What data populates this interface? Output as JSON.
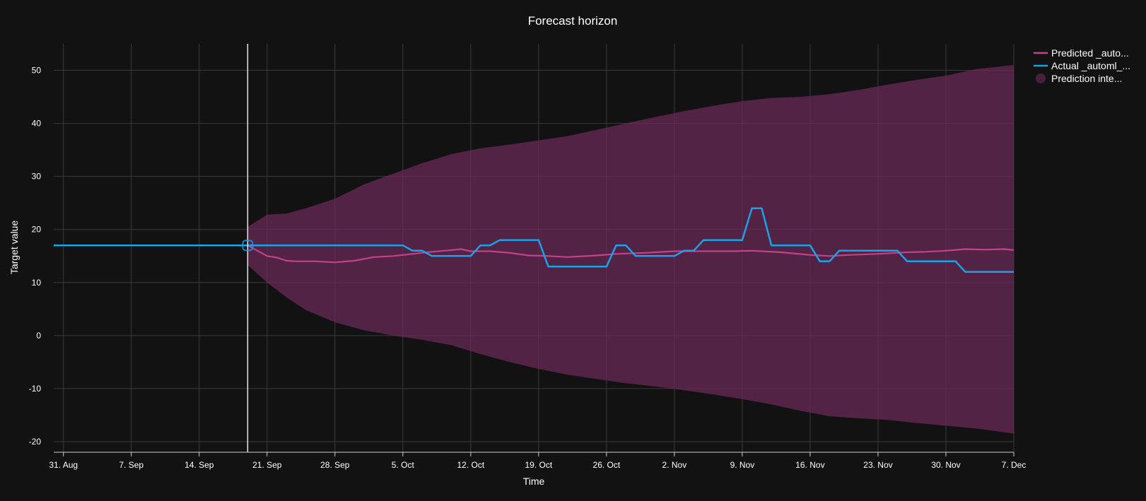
{
  "chart_data": {
    "type": "line",
    "title": "Forecast horizon",
    "xlabel": "Time",
    "ylabel": "Target value",
    "ylim": [
      -22,
      55
    ],
    "xlim": [
      "2020-08-30",
      "2020-12-07"
    ],
    "y_ticks": [
      -20,
      -10,
      0,
      10,
      20,
      30,
      40,
      50
    ],
    "x_ticks": [
      {
        "date": "2020-08-31",
        "label": "31. Aug"
      },
      {
        "date": "2020-09-07",
        "label": "7. Sep"
      },
      {
        "date": "2020-09-14",
        "label": "14. Sep"
      },
      {
        "date": "2020-09-21",
        "label": "21. Sep"
      },
      {
        "date": "2020-09-28",
        "label": "28. Sep"
      },
      {
        "date": "2020-10-05",
        "label": "5. Oct"
      },
      {
        "date": "2020-10-12",
        "label": "12. Oct"
      },
      {
        "date": "2020-10-19",
        "label": "19. Oct"
      },
      {
        "date": "2020-10-26",
        "label": "26. Oct"
      },
      {
        "date": "2020-11-02",
        "label": "2. Nov"
      },
      {
        "date": "2020-11-09",
        "label": "9. Nov"
      },
      {
        "date": "2020-11-16",
        "label": "16. Nov"
      },
      {
        "date": "2020-11-23",
        "label": "23. Nov"
      },
      {
        "date": "2020-11-30",
        "label": "30. Nov"
      },
      {
        "date": "2020-12-07",
        "label": "7. Dec"
      }
    ],
    "grid": true,
    "legend_position": "top-right",
    "forecast_origin": "2020-09-19",
    "series": [
      {
        "name": "Predicted _auto...",
        "kind": "line",
        "color": "#c2428b",
        "points": [
          [
            "2020-09-19",
            17.0
          ],
          [
            "2020-09-20",
            16.0
          ],
          [
            "2020-09-21",
            15.0
          ],
          [
            "2020-09-22",
            14.7
          ],
          [
            "2020-09-23",
            14.1
          ],
          [
            "2020-09-24",
            14.0
          ],
          [
            "2020-09-26",
            14.0
          ],
          [
            "2020-09-28",
            13.8
          ],
          [
            "2020-09-30",
            14.1
          ],
          [
            "2020-10-02",
            14.8
          ],
          [
            "2020-10-04",
            15.0
          ],
          [
            "2020-10-06",
            15.4
          ],
          [
            "2020-10-08",
            15.8
          ],
          [
            "2020-10-10",
            16.1
          ],
          [
            "2020-10-11",
            16.3
          ],
          [
            "2020-10-12",
            15.9
          ],
          [
            "2020-10-14",
            15.9
          ],
          [
            "2020-10-16",
            15.6
          ],
          [
            "2020-10-18",
            15.1
          ],
          [
            "2020-10-20",
            15.0
          ],
          [
            "2020-10-22",
            14.8
          ],
          [
            "2020-10-25",
            15.1
          ],
          [
            "2020-10-27",
            15.4
          ],
          [
            "2020-10-30",
            15.6
          ],
          [
            "2020-11-02",
            15.9
          ],
          [
            "2020-11-05",
            15.9
          ],
          [
            "2020-11-08",
            15.9
          ],
          [
            "2020-11-10",
            16.0
          ],
          [
            "2020-11-13",
            15.7
          ],
          [
            "2020-11-16",
            15.2
          ],
          [
            "2020-11-18",
            15.0
          ],
          [
            "2020-11-20",
            15.2
          ],
          [
            "2020-11-23",
            15.4
          ],
          [
            "2020-11-26",
            15.7
          ],
          [
            "2020-11-28",
            15.8
          ],
          [
            "2020-11-30",
            16.0
          ],
          [
            "2020-12-02",
            16.3
          ],
          [
            "2020-12-04",
            16.2
          ],
          [
            "2020-12-06",
            16.3
          ],
          [
            "2020-12-07",
            16.1
          ]
        ]
      },
      {
        "name": "Actual _automl_...",
        "kind": "step",
        "color": "#1aa3e8",
        "points": [
          [
            "2020-08-30",
            17
          ],
          [
            "2020-10-05",
            17
          ],
          [
            "2020-10-06",
            16
          ],
          [
            "2020-10-07",
            16
          ],
          [
            "2020-10-08",
            15
          ],
          [
            "2020-10-12",
            15
          ],
          [
            "2020-10-13",
            17
          ],
          [
            "2020-10-14",
            17
          ],
          [
            "2020-10-15",
            18
          ],
          [
            "2020-10-19",
            18
          ],
          [
            "2020-10-20",
            13
          ],
          [
            "2020-10-26",
            13
          ],
          [
            "2020-10-27",
            17
          ],
          [
            "2020-10-28",
            17
          ],
          [
            "2020-10-29",
            15
          ],
          [
            "2020-11-02",
            15
          ],
          [
            "2020-11-03",
            16
          ],
          [
            "2020-11-04",
            16
          ],
          [
            "2020-11-05",
            18
          ],
          [
            "2020-11-09",
            18
          ],
          [
            "2020-11-10",
            24
          ],
          [
            "2020-11-11",
            24
          ],
          [
            "2020-11-12",
            17
          ],
          [
            "2020-11-16",
            17
          ],
          [
            "2020-11-17",
            14
          ],
          [
            "2020-11-18",
            14
          ],
          [
            "2020-11-19",
            16
          ],
          [
            "2020-11-25",
            16
          ],
          [
            "2020-11-26",
            14
          ],
          [
            "2020-12-01",
            14
          ],
          [
            "2020-12-02",
            12
          ],
          [
            "2020-12-07",
            12
          ]
        ]
      },
      {
        "name": "Prediction inte...",
        "kind": "band",
        "color": "#6b2a57",
        "upper": [
          [
            "2020-09-19",
            20.5
          ],
          [
            "2020-09-21",
            22.8
          ],
          [
            "2020-09-23",
            23.0
          ],
          [
            "2020-09-25",
            24.0
          ],
          [
            "2020-09-28",
            25.8
          ],
          [
            "2020-10-01",
            28.5
          ],
          [
            "2020-10-04",
            30.5
          ],
          [
            "2020-10-07",
            32.5
          ],
          [
            "2020-10-10",
            34.2
          ],
          [
            "2020-10-13",
            35.3
          ],
          [
            "2020-10-16",
            36.0
          ],
          [
            "2020-10-19",
            36.8
          ],
          [
            "2020-10-22",
            37.6
          ],
          [
            "2020-10-25",
            38.8
          ],
          [
            "2020-10-28",
            40.0
          ],
          [
            "2020-10-31",
            41.2
          ],
          [
            "2020-11-03",
            42.3
          ],
          [
            "2020-11-06",
            43.3
          ],
          [
            "2020-11-09",
            44.2
          ],
          [
            "2020-11-12",
            44.8
          ],
          [
            "2020-11-15",
            45.0
          ],
          [
            "2020-11-18",
            45.5
          ],
          [
            "2020-11-21",
            46.3
          ],
          [
            "2020-11-24",
            47.3
          ],
          [
            "2020-11-27",
            48.2
          ],
          [
            "2020-11-30",
            49.0
          ],
          [
            "2020-12-03",
            50.2
          ],
          [
            "2020-12-07",
            51.0
          ]
        ],
        "lower": [
          [
            "2020-09-19",
            13.3
          ],
          [
            "2020-09-21",
            10.0
          ],
          [
            "2020-09-23",
            7.2
          ],
          [
            "2020-09-25",
            4.8
          ],
          [
            "2020-09-28",
            2.5
          ],
          [
            "2020-10-01",
            1.0
          ],
          [
            "2020-10-04",
            0.0
          ],
          [
            "2020-10-07",
            -0.8
          ],
          [
            "2020-10-10",
            -1.8
          ],
          [
            "2020-10-13",
            -3.5
          ],
          [
            "2020-10-16",
            -5.0
          ],
          [
            "2020-10-19",
            -6.3
          ],
          [
            "2020-10-22",
            -7.4
          ],
          [
            "2020-10-25",
            -8.2
          ],
          [
            "2020-10-28",
            -9.0
          ],
          [
            "2020-10-31",
            -9.6
          ],
          [
            "2020-11-03",
            -10.3
          ],
          [
            "2020-11-06",
            -11.1
          ],
          [
            "2020-11-09",
            -12.0
          ],
          [
            "2020-11-12",
            -13.0
          ],
          [
            "2020-11-15",
            -14.2
          ],
          [
            "2020-11-18",
            -15.2
          ],
          [
            "2020-11-21",
            -15.6
          ],
          [
            "2020-11-24",
            -15.9
          ],
          [
            "2020-11-27",
            -16.5
          ],
          [
            "2020-11-30",
            -17.0
          ],
          [
            "2020-12-03",
            -17.5
          ],
          [
            "2020-12-07",
            -18.5
          ]
        ]
      }
    ]
  }
}
